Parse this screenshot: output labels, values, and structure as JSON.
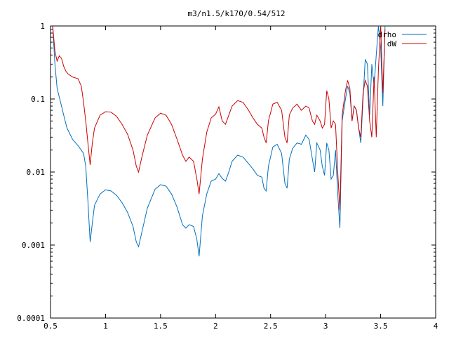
{
  "chart_data": {
    "type": "line",
    "title": "m3/n1.5/k170/0.54/512",
    "xlabel": "",
    "ylabel": "",
    "xlim": [
      0.5,
      4
    ],
    "ylim": [
      0.0001,
      1
    ],
    "yscale": "log",
    "x_ticks": [
      0.5,
      1,
      1.5,
      2,
      2.5,
      3,
      3.5,
      4
    ],
    "x_tick_labels": [
      "0.5",
      "1",
      "1.5",
      "2",
      "2.5",
      "3",
      "3.5",
      "4"
    ],
    "y_ticks": [
      0.0001,
      0.001,
      0.01,
      0.1,
      1
    ],
    "y_tick_labels": [
      "0.0001",
      "0.001",
      "0.01",
      "0.1",
      "1"
    ],
    "grid": false,
    "legend_position": "top-right",
    "series": [
      {
        "name": "drho",
        "color": "#0072bd",
        "points": [
          [
            0.52,
            1.0
          ],
          [
            0.54,
            0.3
          ],
          [
            0.56,
            0.14
          ],
          [
            0.6,
            0.08
          ],
          [
            0.62,
            0.06
          ],
          [
            0.65,
            0.04
          ],
          [
            0.7,
            0.028
          ],
          [
            0.75,
            0.023
          ],
          [
            0.8,
            0.018
          ],
          [
            0.82,
            0.012
          ],
          [
            0.84,
            0.004
          ],
          [
            0.86,
            0.0011
          ],
          [
            0.88,
            0.002
          ],
          [
            0.9,
            0.0035
          ],
          [
            0.95,
            0.005
          ],
          [
            1.0,
            0.0057
          ],
          [
            1.05,
            0.0055
          ],
          [
            1.1,
            0.0048
          ],
          [
            1.15,
            0.0038
          ],
          [
            1.2,
            0.0028
          ],
          [
            1.25,
            0.0018
          ],
          [
            1.28,
            0.0011
          ],
          [
            1.3,
            0.00095
          ],
          [
            1.33,
            0.0015
          ],
          [
            1.38,
            0.0032
          ],
          [
            1.45,
            0.0058
          ],
          [
            1.5,
            0.0067
          ],
          [
            1.55,
            0.0064
          ],
          [
            1.6,
            0.005
          ],
          [
            1.65,
            0.0033
          ],
          [
            1.7,
            0.0019
          ],
          [
            1.73,
            0.0017
          ],
          [
            1.76,
            0.0019
          ],
          [
            1.8,
            0.0018
          ],
          [
            1.83,
            0.0012
          ],
          [
            1.85,
            0.0007
          ],
          [
            1.88,
            0.0025
          ],
          [
            1.92,
            0.005
          ],
          [
            1.96,
            0.0075
          ],
          [
            2.0,
            0.008
          ],
          [
            2.03,
            0.0095
          ],
          [
            2.06,
            0.0082
          ],
          [
            2.09,
            0.0075
          ],
          [
            2.12,
            0.01
          ],
          [
            2.15,
            0.014
          ],
          [
            2.2,
            0.017
          ],
          [
            2.25,
            0.016
          ],
          [
            2.3,
            0.013
          ],
          [
            2.34,
            0.011
          ],
          [
            2.38,
            0.009
          ],
          [
            2.42,
            0.0085
          ],
          [
            2.44,
            0.006
          ],
          [
            2.46,
            0.0055
          ],
          [
            2.48,
            0.012
          ],
          [
            2.52,
            0.022
          ],
          [
            2.56,
            0.024
          ],
          [
            2.6,
            0.018
          ],
          [
            2.63,
            0.007
          ],
          [
            2.65,
            0.006
          ],
          [
            2.67,
            0.015
          ],
          [
            2.7,
            0.021
          ],
          [
            2.74,
            0.025
          ],
          [
            2.78,
            0.024
          ],
          [
            2.82,
            0.032
          ],
          [
            2.85,
            0.028
          ],
          [
            2.88,
            0.015
          ],
          [
            2.9,
            0.01
          ],
          [
            2.92,
            0.025
          ],
          [
            2.95,
            0.02
          ],
          [
            2.97,
            0.012
          ],
          [
            2.99,
            0.009
          ],
          [
            3.01,
            0.025
          ],
          [
            3.03,
            0.02
          ],
          [
            3.05,
            0.008
          ],
          [
            3.07,
            0.009
          ],
          [
            3.09,
            0.02
          ],
          [
            3.11,
            0.005
          ],
          [
            3.13,
            0.0017
          ],
          [
            3.15,
            0.05
          ],
          [
            3.18,
            0.1
          ],
          [
            3.2,
            0.15
          ],
          [
            3.22,
            0.12
          ],
          [
            3.24,
            0.05
          ],
          [
            3.26,
            0.08
          ],
          [
            3.28,
            0.07
          ],
          [
            3.3,
            0.04
          ],
          [
            3.32,
            0.025
          ],
          [
            3.34,
            0.1
          ],
          [
            3.36,
            0.35
          ],
          [
            3.38,
            0.3
          ],
          [
            3.4,
            0.06
          ],
          [
            3.42,
            0.3
          ],
          [
            3.44,
            0.15
          ],
          [
            3.46,
            0.4
          ],
          [
            3.48,
            1.0
          ],
          [
            3.5,
            0.5
          ],
          [
            3.52,
            0.08
          ],
          [
            3.54,
            1.0
          ]
        ]
      },
      {
        "name": "dW",
        "color": "#cc0000",
        "points": [
          [
            0.52,
            1.0
          ],
          [
            0.54,
            0.45
          ],
          [
            0.56,
            0.33
          ],
          [
            0.58,
            0.39
          ],
          [
            0.6,
            0.36
          ],
          [
            0.62,
            0.28
          ],
          [
            0.64,
            0.24
          ],
          [
            0.66,
            0.22
          ],
          [
            0.7,
            0.2
          ],
          [
            0.75,
            0.19
          ],
          [
            0.78,
            0.15
          ],
          [
            0.8,
            0.09
          ],
          [
            0.82,
            0.05
          ],
          [
            0.84,
            0.025
          ],
          [
            0.86,
            0.0125
          ],
          [
            0.88,
            0.025
          ],
          [
            0.9,
            0.04
          ],
          [
            0.95,
            0.06
          ],
          [
            1.0,
            0.067
          ],
          [
            1.05,
            0.066
          ],
          [
            1.1,
            0.058
          ],
          [
            1.15,
            0.045
          ],
          [
            1.2,
            0.033
          ],
          [
            1.25,
            0.02
          ],
          [
            1.28,
            0.012
          ],
          [
            1.3,
            0.01
          ],
          [
            1.33,
            0.016
          ],
          [
            1.38,
            0.032
          ],
          [
            1.45,
            0.055
          ],
          [
            1.5,
            0.064
          ],
          [
            1.55,
            0.06
          ],
          [
            1.6,
            0.045
          ],
          [
            1.65,
            0.028
          ],
          [
            1.7,
            0.017
          ],
          [
            1.73,
            0.014
          ],
          [
            1.76,
            0.016
          ],
          [
            1.8,
            0.014
          ],
          [
            1.83,
            0.008
          ],
          [
            1.85,
            0.005
          ],
          [
            1.88,
            0.015
          ],
          [
            1.92,
            0.035
          ],
          [
            1.96,
            0.055
          ],
          [
            2.0,
            0.062
          ],
          [
            2.03,
            0.078
          ],
          [
            2.06,
            0.05
          ],
          [
            2.09,
            0.045
          ],
          [
            2.12,
            0.06
          ],
          [
            2.15,
            0.08
          ],
          [
            2.2,
            0.095
          ],
          [
            2.25,
            0.09
          ],
          [
            2.3,
            0.07
          ],
          [
            2.34,
            0.055
          ],
          [
            2.38,
            0.045
          ],
          [
            2.42,
            0.04
          ],
          [
            2.44,
            0.03
          ],
          [
            2.46,
            0.025
          ],
          [
            2.48,
            0.05
          ],
          [
            2.52,
            0.085
          ],
          [
            2.56,
            0.09
          ],
          [
            2.6,
            0.07
          ],
          [
            2.63,
            0.03
          ],
          [
            2.65,
            0.025
          ],
          [
            2.67,
            0.06
          ],
          [
            2.7,
            0.075
          ],
          [
            2.74,
            0.085
          ],
          [
            2.78,
            0.07
          ],
          [
            2.82,
            0.08
          ],
          [
            2.85,
            0.075
          ],
          [
            2.88,
            0.05
          ],
          [
            2.9,
            0.045
          ],
          [
            2.92,
            0.06
          ],
          [
            2.95,
            0.05
          ],
          [
            2.97,
            0.04
          ],
          [
            2.99,
            0.045
          ],
          [
            3.01,
            0.13
          ],
          [
            3.03,
            0.1
          ],
          [
            3.05,
            0.04
          ],
          [
            3.07,
            0.05
          ],
          [
            3.09,
            0.045
          ],
          [
            3.11,
            0.01
          ],
          [
            3.13,
            0.003
          ],
          [
            3.15,
            0.06
          ],
          [
            3.18,
            0.13
          ],
          [
            3.2,
            0.18
          ],
          [
            3.22,
            0.14
          ],
          [
            3.24,
            0.05
          ],
          [
            3.26,
            0.08
          ],
          [
            3.28,
            0.07
          ],
          [
            3.3,
            0.04
          ],
          [
            3.32,
            0.03
          ],
          [
            3.34,
            0.12
          ],
          [
            3.36,
            0.18
          ],
          [
            3.38,
            0.15
          ],
          [
            3.4,
            0.05
          ],
          [
            3.42,
            0.03
          ],
          [
            3.44,
            0.2
          ],
          [
            3.46,
            0.03
          ],
          [
            3.48,
            0.25
          ],
          [
            3.5,
            1.0
          ],
          [
            3.52,
            0.12
          ],
          [
            3.54,
            0.9
          ]
        ]
      }
    ]
  }
}
